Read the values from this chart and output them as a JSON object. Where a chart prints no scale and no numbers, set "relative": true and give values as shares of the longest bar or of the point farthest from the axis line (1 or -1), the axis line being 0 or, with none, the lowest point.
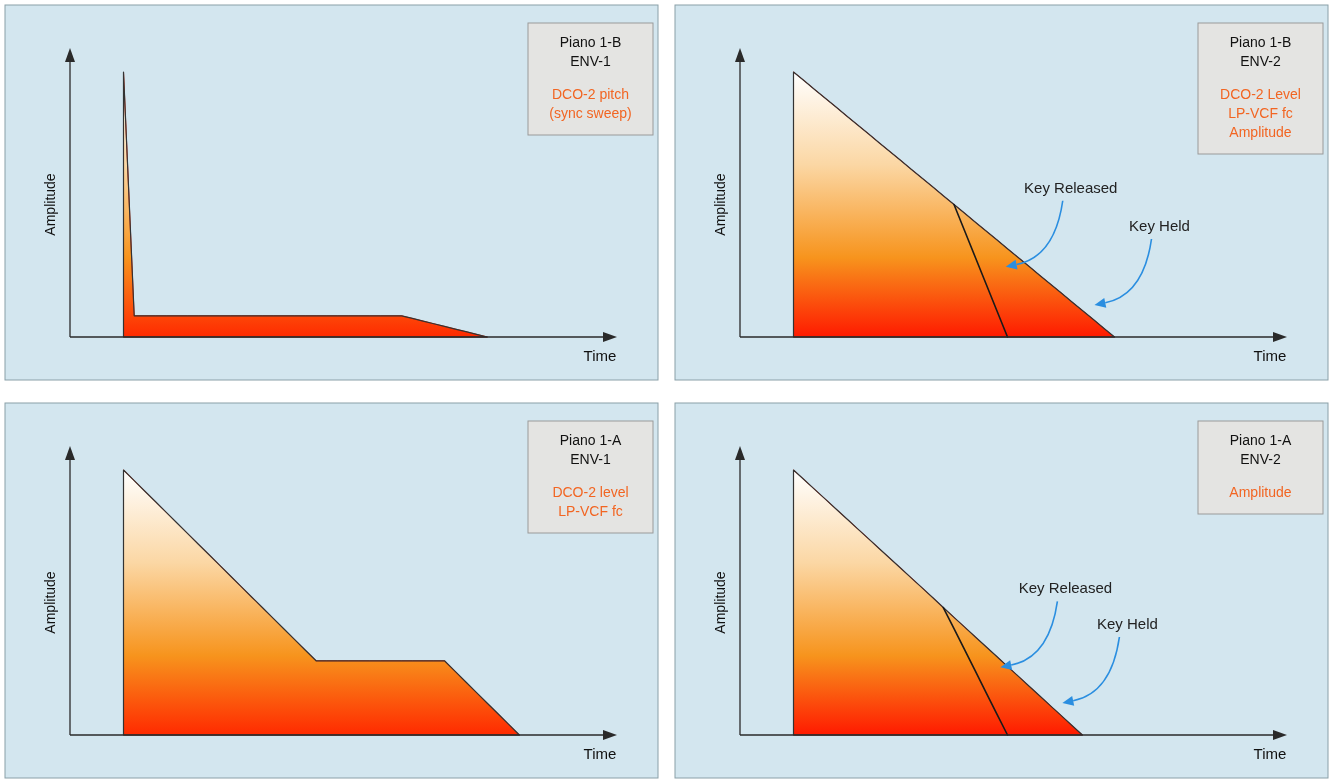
{
  "chart_data": [
    {
      "type": "area",
      "title": "Piano 1-B\nENV-1",
      "subtitle": "DCO-2 pitch\n(sync sweep)",
      "xlabel": "Time",
      "ylabel": "Amplitude",
      "relative": true,
      "categories": [
        null,
        null,
        null,
        null,
        null,
        null,
        null,
        null,
        null,
        null,
        null,
        null,
        null,
        null,
        null,
        null,
        null,
        null,
        null,
        null,
        null,
        null,
        null,
        null,
        null,
        null,
        null,
        null,
        null,
        null,
        null,
        null,
        null,
        null,
        null,
        null,
        null,
        null,
        null,
        null,
        null,
        null,
        null,
        null,
        null,
        null,
        null,
        null,
        null,
        null,
        null
      ],
      "series": [
        {
          "color": "#ff2a00",
          "values": [
            null,
            null,
            null,
            null,
            null,
            1,
            0.08,
            0.08,
            0.08,
            0.08,
            0.08,
            0.08,
            0.08,
            0.08,
            0.08,
            0.08,
            0.08,
            0.08,
            0.08,
            0.08,
            0.08,
            0.08,
            0.08,
            0.08,
            0.08,
            0.08,
            0.08,
            0.08,
            0.08,
            0.08,
            0.08,
            0.08,
            0.07,
            0.06,
            0.05,
            0.04,
            0.03,
            0.02,
            0.01,
            0,
            null,
            null,
            null,
            null,
            null,
            null,
            null,
            null,
            null,
            null,
            null
          ]
        }
      ]
    },
    {
      "type": "area",
      "title": "Piano 1-B\nENV-2",
      "subtitle": "DCO-2 Level\nLP-VCF fc\nAmplitude",
      "xlabel": "Time",
      "ylabel": "Amplitude",
      "relative": true,
      "categories": [
        null,
        null,
        null,
        null,
        null,
        null,
        null,
        null,
        null,
        null,
        null,
        null,
        null,
        null,
        null,
        null,
        null,
        null,
        null,
        null,
        null,
        null,
        null,
        null,
        null,
        null,
        null,
        null,
        null,
        null,
        null,
        null,
        null,
        null,
        null,
        null,
        null,
        null,
        null,
        null,
        null,
        null,
        null,
        null,
        null,
        null,
        null,
        null,
        null,
        null,
        null
      ],
      "series": [
        {
          "color": "#ff1a00",
          "values": [
            null,
            null,
            null,
            null,
            null,
            1,
            0.967,
            0.933,
            0.9,
            0.867,
            0.833,
            0.8,
            0.767,
            0.733,
            0.7,
            0.667,
            0.633,
            0.6,
            0.567,
            0.533,
            0.5,
            0.467,
            0.433,
            0.4,
            0.367,
            0.333,
            0.3,
            0.267,
            0.233,
            0.2,
            0.167,
            0.133,
            0.1,
            0.067,
            0.033,
            0,
            null,
            null,
            null,
            null,
            null,
            null,
            null,
            null,
            null,
            null,
            null,
            null,
            null,
            null,
            null
          ]
        },
        {
          "type": "line",
          "color": "#1a1a1a",
          "values": [
            null,
            null,
            null,
            null,
            null,
            null,
            null,
            null,
            null,
            null,
            null,
            null,
            null,
            null,
            null,
            null,
            null,
            null,
            null,
            null,
            0.5,
            0.4,
            0.3,
            0.2,
            0.1,
            0,
            null,
            null,
            null,
            null,
            null,
            null,
            null,
            null,
            null,
            null,
            null,
            null,
            null,
            null,
            null,
            null,
            null,
            null,
            null,
            null,
            null,
            null,
            null,
            null,
            null
          ]
        }
      ],
      "annotations": [
        "Key Released",
        "Key Held"
      ]
    },
    {
      "type": "area",
      "title": "Piano 1-A\nENV-1",
      "subtitle": "DCO-2 level\nLP-VCF fc",
      "xlabel": "Time",
      "ylabel": "Amplitude",
      "relative": true,
      "categories": [
        null,
        null,
        null,
        null,
        null,
        null,
        null,
        null,
        null,
        null,
        null,
        null,
        null,
        null,
        null,
        null,
        null,
        null,
        null,
        null,
        null,
        null,
        null,
        null,
        null,
        null,
        null,
        null,
        null,
        null,
        null,
        null,
        null,
        null,
        null,
        null,
        null,
        null,
        null,
        null,
        null,
        null,
        null,
        null,
        null,
        null,
        null,
        null,
        null,
        null,
        null
      ],
      "series": [
        {
          "color": "#ff2a00",
          "values": [
            null,
            null,
            null,
            null,
            null,
            1,
            0.96,
            0.92,
            0.88,
            0.84,
            0.8,
            0.76,
            0.72,
            0.68,
            0.64,
            0.6,
            0.56,
            0.52,
            0.48,
            0.44,
            0.4,
            0.36,
            0.32,
            0.28,
            0.28,
            0.28,
            0.28,
            0.28,
            0.28,
            0.28,
            0.28,
            0.28,
            0.28,
            0.28,
            0.28,
            0.28,
            0.24,
            0.2,
            0.16,
            0.12,
            0.08,
            0.04,
            0,
            null,
            null,
            null,
            null,
            null,
            null,
            null,
            null
          ]
        }
      ]
    },
    {
      "type": "area",
      "title": "Piano 1-A\nENV-2",
      "subtitle": "Amplitude",
      "xlabel": "Time",
      "ylabel": "Amplitude",
      "relative": true,
      "categories": [
        null,
        null,
        null,
        null,
        null,
        null,
        null,
        null,
        null,
        null,
        null,
        null,
        null,
        null,
        null,
        null,
        null,
        null,
        null,
        null,
        null,
        null,
        null,
        null,
        null,
        null,
        null,
        null,
        null,
        null,
        null,
        null,
        null,
        null,
        null,
        null,
        null,
        null,
        null,
        null,
        null,
        null,
        null,
        null,
        null,
        null,
        null,
        null,
        null,
        null,
        null
      ],
      "series": [
        {
          "color": "#ff1a00",
          "values": [
            null,
            null,
            null,
            null,
            null,
            1,
            0.963,
            0.926,
            0.889,
            0.852,
            0.815,
            0.778,
            0.741,
            0.704,
            0.667,
            0.63,
            0.593,
            0.556,
            0.519,
            0.481,
            0.444,
            0.407,
            0.37,
            0.333,
            0.296,
            0.259,
            0.222,
            0.185,
            0.148,
            0.111,
            0.074,
            0.037,
            0,
            null,
            null,
            null,
            null,
            null,
            null,
            null,
            null,
            null,
            null,
            null,
            null,
            null,
            null,
            null,
            null,
            null,
            null
          ]
        },
        {
          "type": "line",
          "color": "#1a1a1a",
          "values": [
            null,
            null,
            null,
            null,
            null,
            null,
            null,
            null,
            null,
            null,
            null,
            null,
            null,
            null,
            null,
            null,
            null,
            null,
            null,
            0.481,
            0.401,
            0.321,
            0.241,
            0.16,
            0.08,
            0,
            null,
            null,
            null,
            null,
            null,
            null,
            null,
            null,
            null,
            null,
            null,
            null,
            null,
            null,
            null,
            null,
            null,
            null,
            null,
            null,
            null,
            null,
            null,
            null,
            null
          ]
        }
      ],
      "annotations": [
        "Key Released",
        "Key Held"
      ]
    }
  ]
}
